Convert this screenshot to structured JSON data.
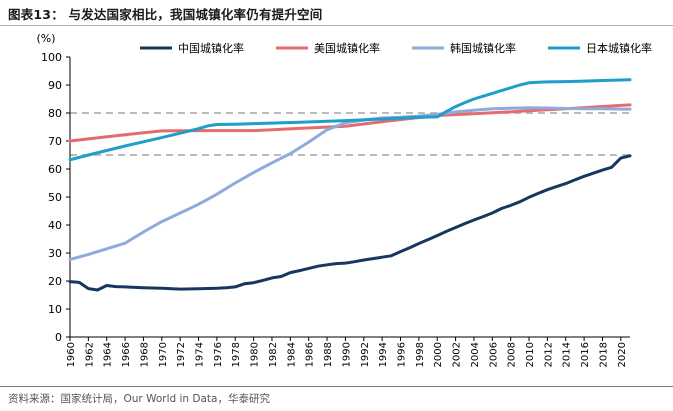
{
  "figure": {
    "title": "图表13：  与发达国家相比，我国城镇化率仍有提升空间",
    "source": "资料来源：国家统计局，Our World in Data，华泰研究"
  },
  "colors": {
    "china": "#17375e",
    "usa": "#e46c6e",
    "korea": "#8faadc",
    "japan": "#1f9ec9",
    "reference": "#b3b3b3",
    "axis": "#000000"
  },
  "chart_data": {
    "type": "line",
    "unit_label": "(%)",
    "ylim": [
      0,
      100
    ],
    "yticks": [
      0,
      10,
      20,
      30,
      40,
      50,
      60,
      70,
      80,
      90,
      100
    ],
    "xlim": [
      1960,
      2021
    ],
    "xticks": [
      1960,
      1962,
      1964,
      1966,
      1968,
      1970,
      1972,
      1974,
      1976,
      1978,
      1980,
      1982,
      1984,
      1986,
      1988,
      1990,
      1992,
      1994,
      1996,
      1998,
      2000,
      2002,
      2004,
      2006,
      2008,
      2010,
      2012,
      2014,
      2016,
      2018,
      2020
    ],
    "reference_lines": [
      80,
      65
    ],
    "legend_position": "top",
    "series": [
      {
        "name": "中国城镇化率",
        "color_key": "china",
        "x": [
          1960,
          1961,
          1962,
          1963,
          1964,
          1965,
          1966,
          1968,
          1970,
          1972,
          1974,
          1976,
          1977,
          1978,
          1979,
          1980,
          1981,
          1982,
          1983,
          1984,
          1985,
          1986,
          1987,
          1988,
          1989,
          1990,
          1991,
          1992,
          1993,
          1994,
          1995,
          1996,
          1997,
          1998,
          1999,
          2000,
          2001,
          2002,
          2003,
          2004,
          2005,
          2006,
          2007,
          2008,
          2009,
          2010,
          2011,
          2012,
          2013,
          2014,
          2015,
          2016,
          2017,
          2018,
          2019,
          2020,
          2021
        ],
        "values": [
          19.8,
          19.5,
          17.3,
          16.8,
          18.4,
          18.0,
          17.9,
          17.6,
          17.4,
          17.1,
          17.2,
          17.4,
          17.6,
          17.9,
          19.0,
          19.4,
          20.2,
          21.1,
          21.6,
          23.0,
          23.7,
          24.5,
          25.3,
          25.8,
          26.2,
          26.4,
          26.9,
          27.5,
          28.0,
          28.5,
          29.0,
          30.5,
          31.9,
          33.4,
          34.8,
          36.2,
          37.7,
          39.1,
          40.5,
          41.8,
          43.0,
          44.3,
          45.9,
          47.0,
          48.3,
          49.9,
          51.3,
          52.6,
          53.7,
          54.8,
          56.1,
          57.4,
          58.5,
          59.6,
          60.6,
          63.9,
          64.7
        ]
      },
      {
        "name": "美国城镇化率",
        "color_key": "usa",
        "x": [
          1960,
          1965,
          1970,
          1975,
          1980,
          1985,
          1990,
          1995,
          2000,
          2005,
          2010,
          2015,
          2020,
          2021
        ],
        "values": [
          70.0,
          71.9,
          73.6,
          73.7,
          73.7,
          74.5,
          75.3,
          77.3,
          79.1,
          79.9,
          80.8,
          81.7,
          82.7,
          82.9
        ]
      },
      {
        "name": "韩国城镇化率",
        "color_key": "korea",
        "x": [
          1960,
          1962,
          1964,
          1966,
          1968,
          1970,
          1972,
          1974,
          1976,
          1978,
          1980,
          1982,
          1984,
          1986,
          1988,
          1990,
          1992,
          1994,
          1996,
          1998,
          2000,
          2002,
          2004,
          2006,
          2008,
          2010,
          2012,
          2014,
          2016,
          2018,
          2020,
          2021
        ],
        "values": [
          27.7,
          29.5,
          31.5,
          33.5,
          37.5,
          41.2,
          44.3,
          47.4,
          51.0,
          55.0,
          58.7,
          62.2,
          65.5,
          69.6,
          74.0,
          76.5,
          77.5,
          78.2,
          78.5,
          78.9,
          79.5,
          80.4,
          81.0,
          81.5,
          81.7,
          81.9,
          81.8,
          81.6,
          81.5,
          81.5,
          81.4,
          81.4
        ]
      },
      {
        "name": "日本城镇化率",
        "color_key": "japan",
        "x": [
          1960,
          1962,
          1964,
          1966,
          1968,
          1970,
          1972,
          1974,
          1975,
          1976,
          1978,
          1980,
          1985,
          1990,
          1995,
          1998,
          2000,
          2001,
          2002,
          2003,
          2004,
          2005,
          2006,
          2007,
          2008,
          2009,
          2010,
          2011,
          2012,
          2014,
          2016,
          2018,
          2020,
          2021
        ],
        "values": [
          63.3,
          65.0,
          66.6,
          68.2,
          69.7,
          71.2,
          72.8,
          74.4,
          75.4,
          75.9,
          76.0,
          76.2,
          76.7,
          77.3,
          78.0,
          78.5,
          78.6,
          80.5,
          82.3,
          83.7,
          85.0,
          86.0,
          87.0,
          88.0,
          89.0,
          90.0,
          90.8,
          91.0,
          91.1,
          91.2,
          91.4,
          91.6,
          91.8,
          91.9
        ]
      }
    ]
  }
}
